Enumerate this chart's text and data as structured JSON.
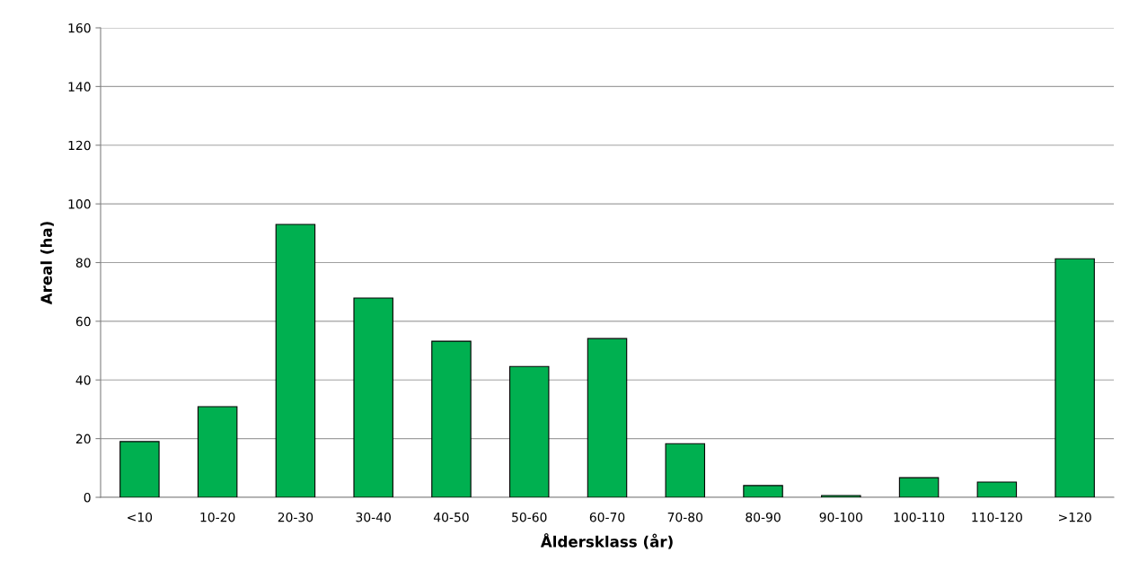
{
  "chart_data": {
    "type": "bar",
    "xlabel": "Åldersklass (år)",
    "ylabel": "Areal (ha)",
    "categories": [
      "<10",
      "10-20",
      "20-30",
      "30-40",
      "40-50",
      "50-60",
      "60-70",
      "70-80",
      "80-90",
      "90-100",
      "100-110",
      "110-120",
      ">120"
    ],
    "values": [
      19.0,
      30.9,
      93.0,
      67.9,
      53.2,
      44.6,
      54.1,
      18.3,
      4.0,
      0.6,
      6.7,
      5.2,
      81.3
    ],
    "color": "#00b050",
    "ylim": [
      0,
      160
    ],
    "yticks": [
      0,
      20,
      40,
      60,
      80,
      100,
      120,
      140,
      160
    ],
    "grid": "y",
    "legend": false
  }
}
